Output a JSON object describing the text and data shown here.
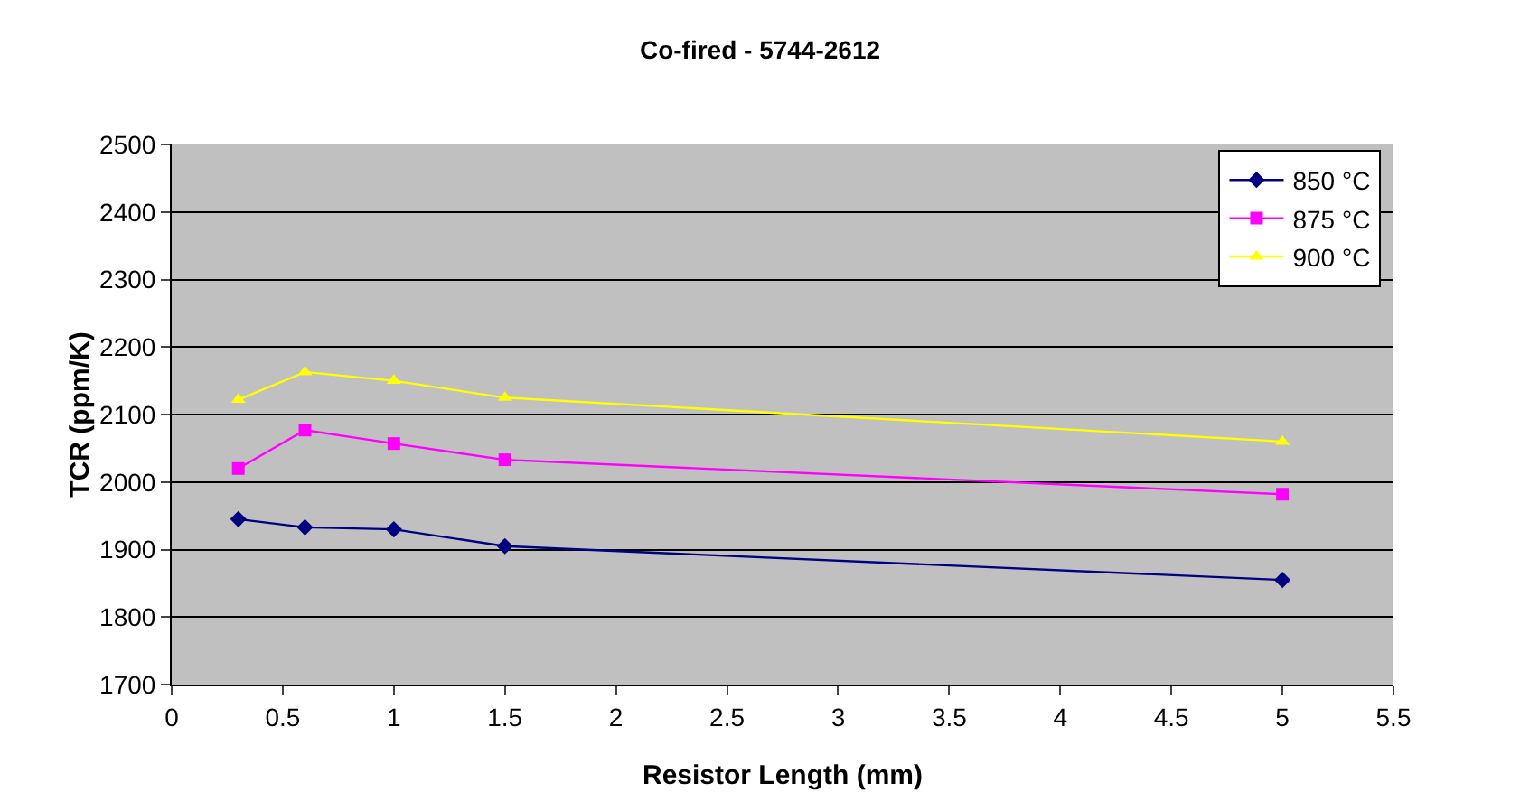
{
  "chart_data": {
    "type": "line",
    "title": "Co-fired - 5744-2612",
    "xlabel": "Resistor Length (mm)",
    "ylabel": "TCR (ppm/K)",
    "x": [
      0.3,
      0.6,
      1,
      1.5,
      5
    ],
    "series": [
      {
        "name": "850 °C",
        "color": "#000080",
        "marker": "diamond",
        "values": [
          1945,
          1933,
          1930,
          1905,
          1855
        ]
      },
      {
        "name": "875 °C",
        "color": "#ff00ff",
        "marker": "square",
        "values": [
          2020,
          2077,
          2057,
          2033,
          1982
        ]
      },
      {
        "name": "900 °C",
        "color": "#ffff00",
        "marker": "triangle",
        "values": [
          2122,
          2163,
          2150,
          2125,
          2060
        ]
      }
    ],
    "xlim": [
      0,
      5.5
    ],
    "xticks": [
      0,
      0.5,
      1,
      1.5,
      2,
      2.5,
      3,
      3.5,
      4,
      4.5,
      5,
      5.5
    ],
    "ylim": [
      1700,
      2500
    ],
    "yticks": [
      1700,
      1800,
      1900,
      2000,
      2100,
      2200,
      2300,
      2400,
      2500
    ],
    "grid": "y",
    "legend": "top right"
  }
}
